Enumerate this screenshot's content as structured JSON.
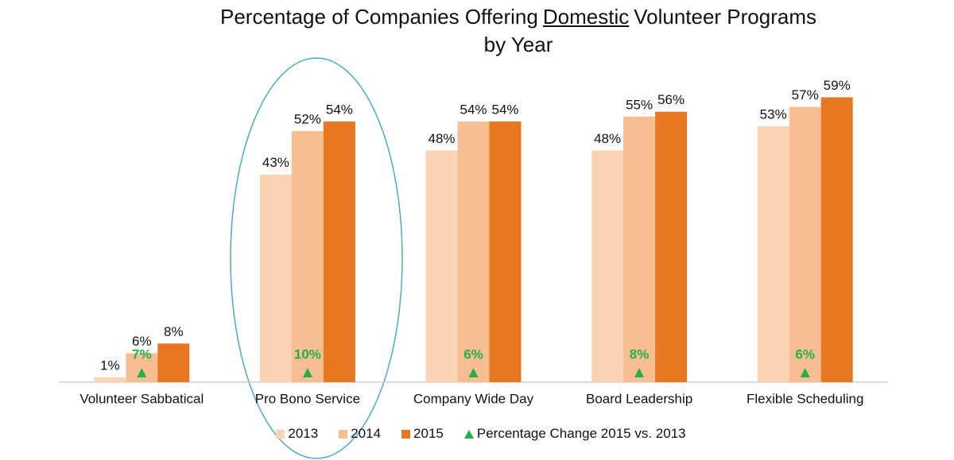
{
  "chart_data": {
    "type": "bar",
    "title": [
      "Percentage of Companies Offering",
      "Domestic",
      "Volunteer Programs",
      "by Year"
    ],
    "title_underlined": 1,
    "categories": [
      "Volunteer Sabbatical",
      "Pro Bono Service",
      "Company Wide Day",
      "Board Leadership",
      "Flexible Scheduling"
    ],
    "series": [
      {
        "name": "2013",
        "color": "#fad4b4",
        "values": [
          1,
          43,
          48,
          48,
          53
        ],
        "value_labels": [
          "1%",
          "43%",
          "48%",
          "48%",
          "53%"
        ]
      },
      {
        "name": "2014",
        "color": "#f7bf91",
        "values": [
          6,
          52,
          54,
          55,
          57
        ],
        "value_labels": [
          "6%",
          "52%",
          "54%",
          "55%",
          "57%"
        ]
      },
      {
        "name": "2015",
        "color": "#e87722",
        "values": [
          8,
          54,
          54,
          56,
          59
        ],
        "value_labels": [
          "8%",
          "54%",
          "54%",
          "56%",
          "59%"
        ]
      }
    ],
    "change": {
      "name": "Percentage Change 2015 vs. 2013",
      "color": "#22b04b",
      "values": [
        7,
        10,
        6,
        8,
        6
      ],
      "value_labels": [
        "7%",
        "10%",
        "6%",
        "8%",
        "6%"
      ]
    },
    "ylim": [
      0,
      65
    ]
  }
}
